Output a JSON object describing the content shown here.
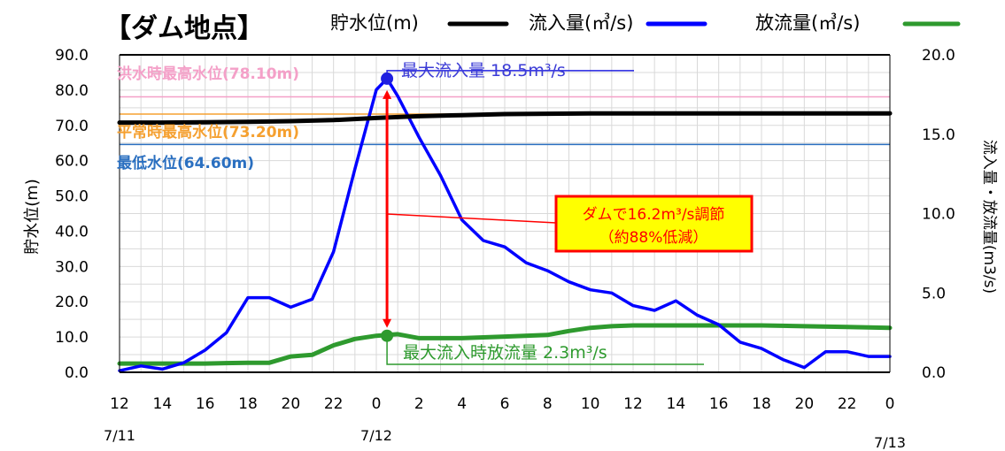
{
  "title": "【ダム地点】",
  "chart_data": {
    "type": "line",
    "title": "【ダム地点】",
    "legend": {
      "placement": "top",
      "items": [
        {
          "label": "貯水位(m)",
          "color": "#000000"
        },
        {
          "label": "流入量(㎥/s)",
          "color": "#0000ff"
        },
        {
          "label": "放流量(㎥/s)",
          "color": "#2e9a2e"
        }
      ]
    },
    "ylabel_left": "貯水位(m)",
    "ylabel_right": "流入量・放流量(m3/s)",
    "ylim_left": [
      0,
      90
    ],
    "ylim_right": [
      0,
      20
    ],
    "yticks_left": [
      "90.0",
      "80.0",
      "70.0",
      "60.0",
      "50.0",
      "40.0",
      "30.0",
      "20.0",
      "10.0",
      "0.0"
    ],
    "yticks_right": [
      "20.0",
      "15.0",
      "10.0",
      "5.0",
      "0.0"
    ],
    "xlim_hours": [
      0,
      36
    ],
    "xticks": [
      "12",
      "14",
      "16",
      "18",
      "20",
      "22",
      "0",
      "2",
      "4",
      "6",
      "8",
      "10",
      "12",
      "14",
      "16",
      "18",
      "20",
      "22",
      "0"
    ],
    "date_labels": [
      "7/11",
      "7/12",
      "7/13"
    ],
    "grid": true,
    "series": [
      {
        "name": "貯水位(m)",
        "axis": "left",
        "color": "#000000",
        "x": [
          0,
          2,
          4,
          6,
          8,
          10,
          12,
          14,
          16,
          18,
          20,
          22,
          24,
          26,
          28,
          30,
          32,
          34,
          36
        ],
        "y": [
          70.8,
          70.8,
          70.9,
          71.0,
          71.2,
          71.5,
          72.1,
          72.6,
          72.9,
          73.2,
          73.3,
          73.4,
          73.4,
          73.4,
          73.4,
          73.4,
          73.4,
          73.4,
          73.4
        ]
      },
      {
        "name": "流入量(㎥/s)",
        "axis": "right",
        "color": "#0000ff",
        "x": [
          0,
          1,
          2,
          3,
          4,
          5,
          6,
          7,
          8,
          9,
          10,
          11,
          12,
          12.5,
          13,
          14,
          15,
          16,
          17,
          18,
          19,
          20,
          21,
          22,
          23,
          24,
          25,
          26,
          27,
          28,
          29,
          30,
          31,
          32,
          33,
          34,
          35,
          36
        ],
        "y": [
          0.1,
          0.4,
          0.2,
          0.6,
          1.4,
          2.5,
          4.7,
          4.7,
          4.1,
          4.6,
          7.6,
          12.8,
          17.8,
          18.5,
          17.4,
          14.8,
          12.4,
          9.6,
          8.3,
          7.9,
          6.9,
          6.4,
          5.7,
          5.2,
          5.0,
          4.2,
          3.9,
          4.5,
          3.6,
          3.0,
          1.9,
          1.5,
          0.8,
          0.3,
          1.3,
          1.3,
          1.0,
          1.0
        ]
      },
      {
        "name": "放流量(㎥/s)",
        "axis": "right",
        "color": "#2e9a2e",
        "x": [
          0,
          2,
          4,
          6,
          7,
          8,
          9,
          10,
          11,
          12,
          13,
          14,
          15,
          16,
          18,
          20,
          21,
          22,
          23,
          24,
          26,
          28,
          30,
          32,
          34,
          36
        ],
        "y": [
          0.55,
          0.55,
          0.55,
          0.6,
          0.6,
          1.0,
          1.1,
          1.7,
          2.1,
          2.3,
          2.4,
          2.15,
          2.15,
          2.15,
          2.25,
          2.35,
          2.6,
          2.8,
          2.9,
          2.95,
          2.95,
          2.95,
          2.95,
          2.9,
          2.85,
          2.8
        ]
      }
    ],
    "reference_lines": [
      {
        "label": "洪水時最高水位(78.10m)",
        "value": 78.1,
        "color": "#f4a0c8"
      },
      {
        "label": "平常時最高水位(73.20m)",
        "value": 73.2,
        "color": "#f5a030"
      },
      {
        "label": "最低水位(64.60m)",
        "value": 64.6,
        "color": "#2a6fc0"
      }
    ],
    "annotations": {
      "max_inflow": {
        "text": "最大流入量 18.5m³/s",
        "x": 12.5,
        "y": 18.5,
        "color": "#3b3bd6"
      },
      "max_release": {
        "text": "最大流入時放流量 2.3m³/s",
        "x": 12.5,
        "y": 2.3,
        "color": "#2e9a2e"
      },
      "callout_line1": "ダムで16.2m³/s調節",
      "callout_line2": "（約88%低減）",
      "callout_fill": "#ffff00",
      "callout_border": "#ff0000",
      "callout_text_color": "#ff0000"
    }
  }
}
